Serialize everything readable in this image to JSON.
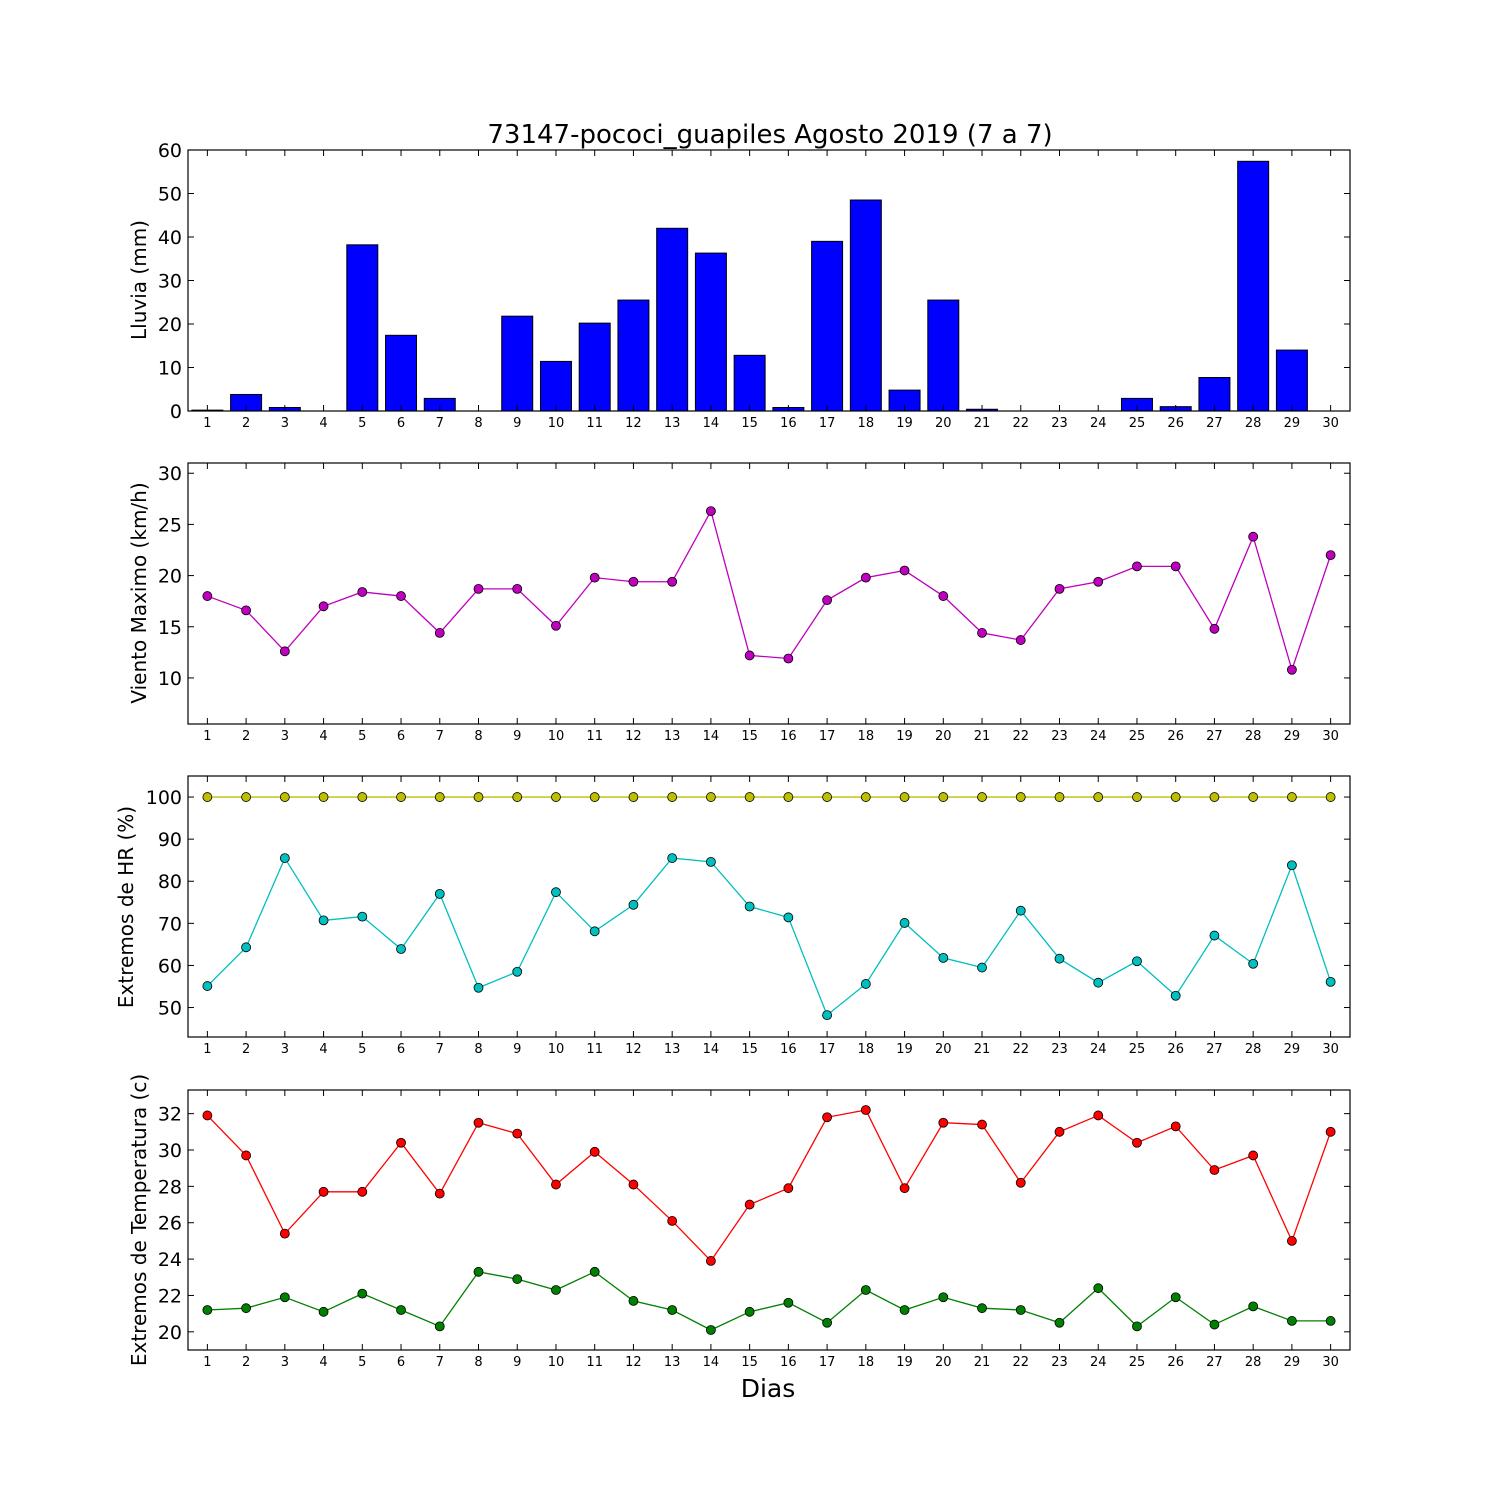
{
  "chart_data": [
    {
      "type": "bar",
      "title": "73147-pococi_guapiles Agosto 2019  (7 a 7)",
      "ylabel": "Lluvia (mm)",
      "xlabel": "",
      "categories": [
        "1",
        "2",
        "3",
        "4",
        "5",
        "6",
        "7",
        "8",
        "9",
        "10",
        "11",
        "12",
        "13",
        "14",
        "15",
        "16",
        "17",
        "18",
        "19",
        "20",
        "21",
        "22",
        "23",
        "24",
        "25",
        "26",
        "27",
        "28",
        "29",
        "30"
      ],
      "values": [
        0.2,
        3.8,
        0.8,
        0.0,
        38.2,
        17.4,
        2.9,
        0.0,
        21.8,
        11.4,
        20.2,
        25.5,
        42.0,
        36.3,
        12.8,
        0.8,
        39.0,
        48.5,
        4.8,
        25.5,
        0.4,
        0.0,
        0.0,
        0.0,
        2.9,
        1.0,
        7.7,
        57.4,
        14.0,
        0.0
      ],
      "ylim": [
        0,
        60
      ],
      "yticks": [
        "0",
        "10",
        "20",
        "30",
        "40",
        "50",
        "60"
      ],
      "color": "#0000ff",
      "grid": false
    },
    {
      "type": "line",
      "ylabel": "Viento Maximo (km/h)",
      "x": [
        1,
        2,
        3,
        4,
        5,
        6,
        7,
        8,
        9,
        10,
        11,
        12,
        13,
        14,
        15,
        16,
        17,
        18,
        19,
        20,
        21,
        22,
        23,
        24,
        25,
        26,
        27,
        28,
        29,
        30
      ],
      "series": [
        {
          "values": [
            18.0,
            16.6,
            12.6,
            17.0,
            18.4,
            18.0,
            14.4,
            18.7,
            18.7,
            15.1,
            19.8,
            19.4,
            19.4,
            26.3,
            12.2,
            11.9,
            17.6,
            19.8,
            20.5,
            18.0,
            14.4,
            13.7,
            18.7,
            19.4,
            20.9,
            20.9,
            14.8,
            23.8,
            10.8,
            22.0
          ],
          "color": "#bf00bf"
        }
      ],
      "ylim": [
        5.5,
        31
      ],
      "yticks": [
        "10",
        "15",
        "20",
        "25",
        "30"
      ],
      "grid": false
    },
    {
      "type": "line",
      "ylabel": "Extremos de HR (%)",
      "x": [
        1,
        2,
        3,
        4,
        5,
        6,
        7,
        8,
        9,
        10,
        11,
        12,
        13,
        14,
        15,
        16,
        17,
        18,
        19,
        20,
        21,
        22,
        23,
        24,
        25,
        26,
        27,
        28,
        29,
        30
      ],
      "series": [
        {
          "values": [
            100,
            100,
            100,
            100,
            100,
            100,
            100,
            100,
            100,
            100,
            100,
            100,
            100,
            100,
            100,
            100,
            100,
            100,
            100,
            100,
            100,
            100,
            100,
            100,
            100,
            100,
            100,
            100,
            100,
            100
          ],
          "color": "#bfbf00"
        },
        {
          "values": [
            55.1,
            64.3,
            85.5,
            70.7,
            71.6,
            63.9,
            77.0,
            54.7,
            58.5,
            77.4,
            68.1,
            74.4,
            85.5,
            84.6,
            74.0,
            71.4,
            48.2,
            55.6,
            70.1,
            61.8,
            59.5,
            73.0,
            61.6,
            55.9,
            61.0,
            52.8,
            67.1,
            60.4,
            83.8,
            56.1
          ],
          "color": "#00bfbf"
        }
      ],
      "ylim": [
        43,
        105
      ],
      "yticks": [
        "50",
        "60",
        "70",
        "80",
        "90",
        "100"
      ],
      "grid": false
    },
    {
      "type": "line",
      "ylabel": "Extremos de Temperatura (c)",
      "xlabel": "Dias",
      "x": [
        1,
        2,
        3,
        4,
        5,
        6,
        7,
        8,
        9,
        10,
        11,
        12,
        13,
        14,
        15,
        16,
        17,
        18,
        19,
        20,
        21,
        22,
        23,
        24,
        25,
        26,
        27,
        28,
        29,
        30
      ],
      "series": [
        {
          "values": [
            31.9,
            29.7,
            25.4,
            27.7,
            27.7,
            30.4,
            27.6,
            31.5,
            30.9,
            28.1,
            29.9,
            28.1,
            26.1,
            23.9,
            27.0,
            27.9,
            31.8,
            32.2,
            27.9,
            31.5,
            31.4,
            28.2,
            31.0,
            31.9,
            30.4,
            31.3,
            28.9,
            29.7,
            25.0,
            31.0
          ],
          "color": "#ff0000"
        },
        {
          "values": [
            21.2,
            21.3,
            21.9,
            21.1,
            22.1,
            21.2,
            20.3,
            23.3,
            22.9,
            22.3,
            23.3,
            21.7,
            21.2,
            20.1,
            21.1,
            21.6,
            20.5,
            22.3,
            21.2,
            21.9,
            21.3,
            21.2,
            20.5,
            22.4,
            20.3,
            21.9,
            20.4,
            21.4,
            20.6,
            20.6
          ],
          "color": "#008000"
        }
      ],
      "ylim": [
        19,
        33.3
      ],
      "yticks": [
        "20",
        "22",
        "24",
        "26",
        "28",
        "30",
        "32"
      ],
      "grid": false
    }
  ]
}
